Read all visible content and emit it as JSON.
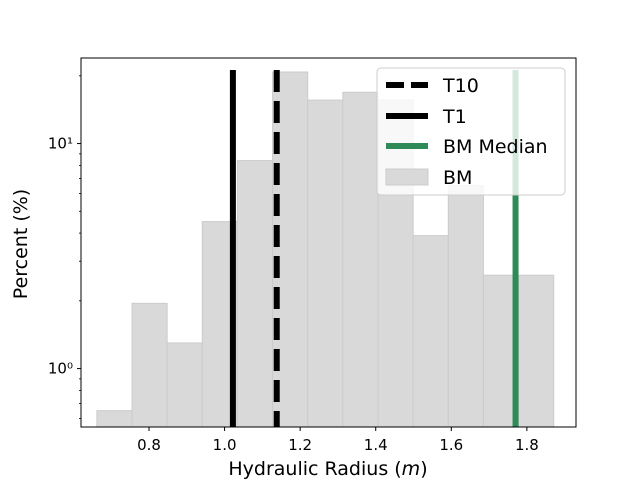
{
  "chart_data": {
    "type": "histogram",
    "yscale": "log",
    "xlabel_main": "Hydraulic Radius (",
    "xlabel_unit": "m",
    "xlabel_close": ")",
    "ylabel": "Percent (%)",
    "xlim": [
      0.62,
      1.93
    ],
    "ylim": [
      0.55,
      24
    ],
    "xticks": [
      0.8,
      1.0,
      1.2,
      1.4,
      1.6,
      1.8
    ],
    "xtick_labels": [
      "0.8",
      "1.0",
      "1.2",
      "1.4",
      "1.6",
      "1.8"
    ],
    "yticks": [
      1,
      10
    ],
    "ytick_labels": [
      "10⁰",
      "10¹"
    ],
    "bins": [
      {
        "x0": 0.662,
        "x1": 0.755,
        "value": 0.65
      },
      {
        "x0": 0.755,
        "x1": 0.848,
        "value": 1.95
      },
      {
        "x0": 0.848,
        "x1": 0.941,
        "value": 1.3
      },
      {
        "x0": 0.941,
        "x1": 1.034,
        "value": 4.5
      },
      {
        "x0": 1.034,
        "x1": 1.127,
        "value": 8.4
      },
      {
        "x0": 1.127,
        "x1": 1.22,
        "value": 20.8
      },
      {
        "x0": 1.22,
        "x1": 1.313,
        "value": 15.6
      },
      {
        "x0": 1.313,
        "x1": 1.406,
        "value": 16.9
      },
      {
        "x0": 1.406,
        "x1": 1.499,
        "value": 15.6
      },
      {
        "x0": 1.499,
        "x1": 1.592,
        "value": 3.9
      },
      {
        "x0": 1.592,
        "x1": 1.685,
        "value": 6.5
      },
      {
        "x0": 1.685,
        "x1": 1.778,
        "value": 2.6
      },
      {
        "x0": 1.778,
        "x1": 1.871,
        "value": 2.6
      }
    ],
    "vlines": [
      {
        "name": "T10",
        "x": 1.138,
        "style": "dashed",
        "color": "#000000"
      },
      {
        "name": "T1",
        "x": 1.022,
        "style": "solid",
        "color": "#000000"
      },
      {
        "name": "BM Median",
        "x": 1.77,
        "style": "solid",
        "color": "#2e8b57"
      }
    ],
    "legend": {
      "placement": "top-right",
      "entries": [
        {
          "label": "T10",
          "kind": "dashed-line",
          "color": "#000000"
        },
        {
          "label": "T1",
          "kind": "solid-line",
          "color": "#000000"
        },
        {
          "label": "BM Median",
          "kind": "solid-line",
          "color": "#2e8b57"
        },
        {
          "label": "BM",
          "kind": "patch",
          "color": "#d9d9d9"
        }
      ]
    },
    "colors": {
      "bar_fill": "#d9d9d9",
      "bar_edge": "#cccccc"
    }
  }
}
